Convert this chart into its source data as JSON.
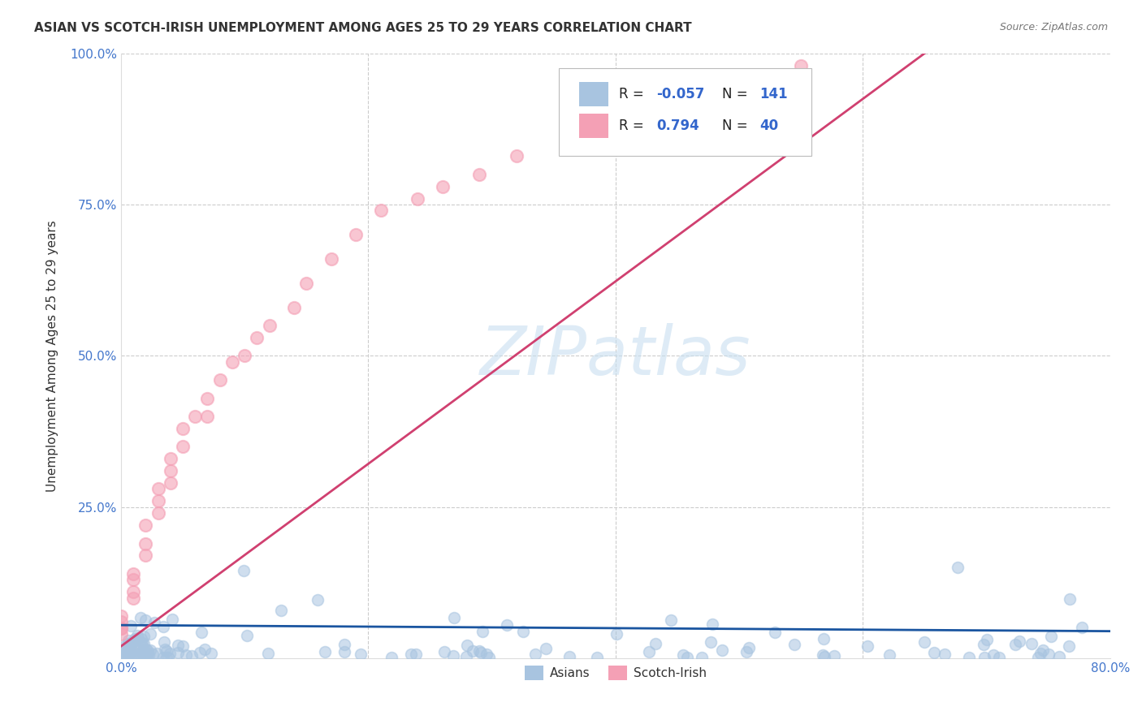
{
  "title": "ASIAN VS SCOTCH-IRISH UNEMPLOYMENT AMONG AGES 25 TO 29 YEARS CORRELATION CHART",
  "source": "Source: ZipAtlas.com",
  "ylabel": "Unemployment Among Ages 25 to 29 years",
  "xlim": [
    0.0,
    0.8
  ],
  "ylim": [
    0.0,
    1.0
  ],
  "asian_R": "-0.057",
  "asian_N": "141",
  "scotch_R": "0.794",
  "scotch_N": "40",
  "asian_color": "#a8c4e0",
  "scotch_color": "#f4a0b5",
  "asian_line_color": "#1a55a0",
  "scotch_line_color": "#d04070",
  "watermark_color": "#c8dff0",
  "background_color": "#ffffff",
  "grid_color": "#cccccc",
  "tick_color": "#4477cc",
  "title_color": "#333333",
  "source_color": "#777777",
  "legend_text_color": "#222222",
  "legend_value_color": "#3366cc",
  "scotch_x": [
    0.0,
    0.0,
    0.0,
    0.0,
    0.0,
    0.01,
    0.01,
    0.01,
    0.01,
    0.02,
    0.02,
    0.02,
    0.03,
    0.03,
    0.03,
    0.04,
    0.04,
    0.04,
    0.05,
    0.05,
    0.06,
    0.07,
    0.07,
    0.08,
    0.09,
    0.1,
    0.11,
    0.12,
    0.14,
    0.15,
    0.17,
    0.19,
    0.21,
    0.24,
    0.26,
    0.29,
    0.32,
    0.36,
    0.42,
    0.55
  ],
  "scotch_y": [
    0.04,
    0.05,
    0.05,
    0.06,
    0.07,
    0.1,
    0.11,
    0.13,
    0.14,
    0.17,
    0.19,
    0.22,
    0.24,
    0.26,
    0.28,
    0.29,
    0.31,
    0.33,
    0.35,
    0.38,
    0.4,
    0.4,
    0.43,
    0.46,
    0.49,
    0.5,
    0.53,
    0.55,
    0.58,
    0.62,
    0.66,
    0.7,
    0.74,
    0.76,
    0.78,
    0.8,
    0.83,
    0.85,
    0.87,
    0.98
  ],
  "scotch_line_x": [
    0.0,
    0.65
  ],
  "scotch_line_y": [
    0.02,
    1.0
  ],
  "asian_line_x": [
    0.0,
    0.8
  ],
  "asian_line_y": [
    0.055,
    0.045
  ]
}
